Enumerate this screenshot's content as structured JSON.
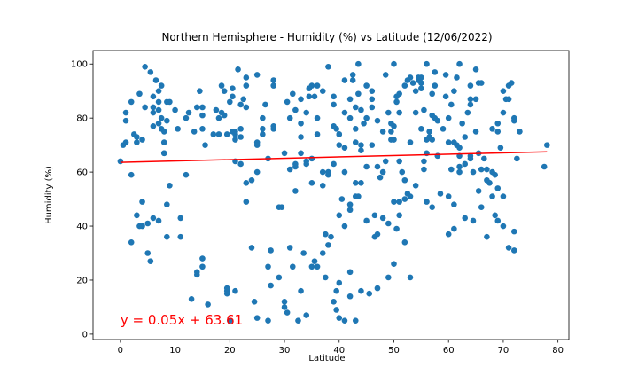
{
  "chart_data": {
    "type": "scatter",
    "title": "Northern Hemisphere - Humidity (%) vs Latitude (12/06/2022)",
    "xlabel": "Latitude",
    "ylabel": "Humidity (%)",
    "xlim": [
      -5,
      82
    ],
    "ylim": [
      -2,
      105
    ],
    "xticks": [
      0,
      10,
      20,
      30,
      40,
      50,
      60,
      70,
      80
    ],
    "yticks": [
      0,
      20,
      40,
      60,
      80,
      100
    ],
    "grid": false,
    "colors": {
      "points": "#1f77b4",
      "regression": "#ff0000",
      "annotation": "#ff0000"
    },
    "regression": {
      "slope": 0.05,
      "intercept": 63.61,
      "x_range": [
        0,
        78
      ],
      "label": "y = 0.05x + 63.61",
      "label_at": [
        0,
        3.5
      ]
    },
    "points": [
      [
        0,
        64
      ],
      [
        0.5,
        70
      ],
      [
        1,
        71
      ],
      [
        1,
        79
      ],
      [
        1,
        82
      ],
      [
        2,
        86
      ],
      [
        2,
        59
      ],
      [
        2,
        34
      ],
      [
        2.5,
        74
      ],
      [
        3,
        71
      ],
      [
        3,
        73
      ],
      [
        3,
        44
      ],
      [
        3.5,
        89
      ],
      [
        3.5,
        40
      ],
      [
        4,
        72
      ],
      [
        4,
        40
      ],
      [
        4,
        49
      ],
      [
        4.5,
        99
      ],
      [
        4.5,
        84
      ],
      [
        5,
        30
      ],
      [
        5,
        41
      ],
      [
        5.5,
        97
      ],
      [
        5.5,
        27
      ],
      [
        6,
        88
      ],
      [
        6,
        84
      ],
      [
        6,
        82
      ],
      [
        6,
        77
      ],
      [
        6,
        43
      ],
      [
        6.5,
        94
      ],
      [
        7,
        90
      ],
      [
        7,
        86
      ],
      [
        7,
        83
      ],
      [
        7,
        78
      ],
      [
        7,
        42
      ],
      [
        7.5,
        92
      ],
      [
        7.5,
        80
      ],
      [
        7.5,
        76
      ],
      [
        8,
        75
      ],
      [
        8,
        71
      ],
      [
        8,
        67
      ],
      [
        8,
        67
      ],
      [
        8.5,
        86
      ],
      [
        8.5,
        79
      ],
      [
        8.5,
        48
      ],
      [
        8.5,
        36
      ],
      [
        9,
        86
      ],
      [
        9,
        55
      ],
      [
        10,
        83
      ],
      [
        10.5,
        76
      ],
      [
        11,
        43
      ],
      [
        11,
        36
      ],
      [
        12,
        80
      ],
      [
        12,
        59
      ],
      [
        12.5,
        82
      ],
      [
        13,
        13
      ],
      [
        13.5,
        75
      ],
      [
        14,
        84
      ],
      [
        14,
        22
      ],
      [
        14,
        23
      ],
      [
        14.5,
        90
      ],
      [
        15,
        28
      ],
      [
        15,
        25
      ],
      [
        15,
        76
      ],
      [
        15,
        84
      ],
      [
        15,
        81
      ],
      [
        15.5,
        70
      ],
      [
        16,
        11
      ],
      [
        17,
        74
      ],
      [
        17.5,
        83
      ],
      [
        18,
        80
      ],
      [
        18,
        74
      ],
      [
        18.5,
        92
      ],
      [
        18.5,
        82
      ],
      [
        19,
        90
      ],
      [
        19,
        81
      ],
      [
        19.5,
        74
      ],
      [
        19.5,
        16
      ],
      [
        19.5,
        15
      ],
      [
        19.5,
        17
      ],
      [
        20,
        86
      ],
      [
        20,
        5
      ],
      [
        20.5,
        91
      ],
      [
        20.5,
        88
      ],
      [
        20.5,
        75
      ],
      [
        21,
        74
      ],
      [
        21,
        72
      ],
      [
        21,
        75
      ],
      [
        21,
        16
      ],
      [
        21,
        64
      ],
      [
        21.5,
        98
      ],
      [
        22,
        85
      ],
      [
        22,
        76
      ],
      [
        22,
        73
      ],
      [
        22,
        63
      ],
      [
        22.5,
        87
      ],
      [
        23,
        95
      ],
      [
        23,
        92
      ],
      [
        23,
        84
      ],
      [
        23,
        56
      ],
      [
        23,
        49
      ],
      [
        24,
        32
      ],
      [
        24,
        57
      ],
      [
        24.5,
        12
      ],
      [
        25,
        96
      ],
      [
        25,
        71
      ],
      [
        25,
        70
      ],
      [
        25,
        60
      ],
      [
        25,
        6
      ],
      [
        26,
        76
      ],
      [
        26,
        74
      ],
      [
        26,
        80
      ],
      [
        26.5,
        85
      ],
      [
        27,
        65
      ],
      [
        27,
        25
      ],
      [
        27,
        5
      ],
      [
        27.5,
        31
      ],
      [
        27.5,
        18
      ],
      [
        28,
        92
      ],
      [
        28,
        77
      ],
      [
        28,
        94
      ],
      [
        28,
        76
      ],
      [
        29,
        21
      ],
      [
        29,
        47
      ],
      [
        29.5,
        47
      ],
      [
        30,
        67
      ],
      [
        30,
        12
      ],
      [
        30,
        10
      ],
      [
        30.5,
        8
      ],
      [
        30.5,
        86
      ],
      [
        31,
        80
      ],
      [
        31,
        61
      ],
      [
        31,
        32
      ],
      [
        31.5,
        89
      ],
      [
        31.5,
        25
      ],
      [
        32,
        83
      ],
      [
        32,
        62
      ],
      [
        32,
        53
      ],
      [
        32,
        63
      ],
      [
        32.5,
        5
      ],
      [
        33,
        67
      ],
      [
        33,
        78
      ],
      [
        33,
        87
      ],
      [
        33,
        73
      ],
      [
        33,
        16
      ],
      [
        33.5,
        30
      ],
      [
        34,
        63
      ],
      [
        34,
        64
      ],
      [
        34,
        7
      ],
      [
        34,
        82
      ],
      [
        34.5,
        91
      ],
      [
        34.5,
        88
      ],
      [
        35,
        92
      ],
      [
        35,
        65
      ],
      [
        35,
        56
      ],
      [
        35,
        25
      ],
      [
        35.5,
        88
      ],
      [
        35.5,
        27
      ],
      [
        36,
        92
      ],
      [
        36,
        80
      ],
      [
        36,
        74
      ],
      [
        36,
        25
      ],
      [
        37,
        90
      ],
      [
        37,
        60
      ],
      [
        37,
        55
      ],
      [
        37,
        30
      ],
      [
        37.5,
        21
      ],
      [
        37.5,
        37
      ],
      [
        38,
        99
      ],
      [
        38,
        33
      ],
      [
        38,
        59
      ],
      [
        38,
        60
      ],
      [
        38.5,
        36
      ],
      [
        39,
        63
      ],
      [
        39,
        77
      ],
      [
        39,
        85
      ],
      [
        39,
        88
      ],
      [
        39,
        12
      ],
      [
        39.5,
        76
      ],
      [
        39.5,
        9
      ],
      [
        39.5,
        16
      ],
      [
        40,
        74
      ],
      [
        40,
        70
      ],
      [
        40,
        44
      ],
      [
        40,
        19
      ],
      [
        40,
        6
      ],
      [
        40,
        74
      ],
      [
        40.5,
        50
      ],
      [
        41,
        94
      ],
      [
        41,
        82
      ],
      [
        41,
        40
      ],
      [
        41,
        69
      ],
      [
        41,
        60
      ],
      [
        41,
        5
      ],
      [
        42,
        87
      ],
      [
        42,
        80
      ],
      [
        42,
        48
      ],
      [
        42,
        46
      ],
      [
        42,
        23
      ],
      [
        42,
        14
      ],
      [
        42.5,
        94
      ],
      [
        42.5,
        96
      ],
      [
        43,
        84
      ],
      [
        43,
        76
      ],
      [
        43,
        71
      ],
      [
        43,
        56
      ],
      [
        43,
        5
      ],
      [
        43,
        51
      ],
      [
        43.5,
        100
      ],
      [
        43.5,
        51
      ],
      [
        43.5,
        89
      ],
      [
        44,
        83
      ],
      [
        44,
        70
      ],
      [
        44,
        68
      ],
      [
        44,
        56
      ],
      [
        44,
        16
      ],
      [
        44.5,
        78
      ],
      [
        45,
        80
      ],
      [
        45,
        92
      ],
      [
        45,
        62
      ],
      [
        45,
        42
      ],
      [
        45.5,
        15
      ],
      [
        46,
        90
      ],
      [
        46,
        87
      ],
      [
        46,
        84
      ],
      [
        46,
        70
      ],
      [
        46.5,
        44
      ],
      [
        46.5,
        36
      ],
      [
        47,
        79
      ],
      [
        47,
        62
      ],
      [
        47,
        37
      ],
      [
        47,
        17
      ],
      [
        47.5,
        58
      ],
      [
        48,
        75
      ],
      [
        48,
        60
      ],
      [
        48,
        43
      ],
      [
        48.5,
        96
      ],
      [
        48.5,
        64
      ],
      [
        49,
        41
      ],
      [
        49,
        21
      ],
      [
        49,
        82
      ],
      [
        49.5,
        78
      ],
      [
        49.5,
        72
      ],
      [
        49.5,
        75
      ],
      [
        50,
        100
      ],
      [
        50,
        77
      ],
      [
        50,
        72
      ],
      [
        50,
        49
      ],
      [
        50,
        26
      ],
      [
        50.5,
        88
      ],
      [
        50.5,
        86
      ],
      [
        50.5,
        39
      ],
      [
        51,
        89
      ],
      [
        51,
        64
      ],
      [
        51,
        82
      ],
      [
        51,
        49
      ],
      [
        51,
        44
      ],
      [
        51.5,
        60
      ],
      [
        52,
        92
      ],
      [
        52,
        57
      ],
      [
        52,
        50
      ],
      [
        52,
        34
      ],
      [
        52.5,
        94
      ],
      [
        52.5,
        52
      ],
      [
        53,
        95
      ],
      [
        53,
        71
      ],
      [
        53,
        51
      ],
      [
        53,
        21
      ],
      [
        53.5,
        93
      ],
      [
        54,
        82
      ],
      [
        54,
        90
      ],
      [
        54,
        55
      ],
      [
        54.5,
        94
      ],
      [
        54.5,
        95
      ],
      [
        55,
        76
      ],
      [
        55,
        95
      ],
      [
        55,
        91
      ],
      [
        55,
        93
      ],
      [
        55.5,
        83
      ],
      [
        55.5,
        61
      ],
      [
        55.5,
        64
      ],
      [
        56,
        100
      ],
      [
        56,
        67
      ],
      [
        56,
        72
      ],
      [
        56,
        49
      ],
      [
        56.5,
        75
      ],
      [
        56.5,
        73
      ],
      [
        57,
        72
      ],
      [
        57,
        89
      ],
      [
        57,
        81
      ],
      [
        57,
        47
      ],
      [
        57.5,
        92
      ],
      [
        57.5,
        80
      ],
      [
        57.5,
        97
      ],
      [
        58,
        66
      ],
      [
        58,
        66
      ],
      [
        58,
        79
      ],
      [
        58.5,
        52
      ],
      [
        59,
        76
      ],
      [
        59.5,
        96
      ],
      [
        59.5,
        88
      ],
      [
        60,
        71
      ],
      [
        60,
        80
      ],
      [
        60,
        51
      ],
      [
        60,
        37
      ],
      [
        60.5,
        85
      ],
      [
        60.5,
        61
      ],
      [
        61,
        90
      ],
      [
        61,
        71
      ],
      [
        61,
        48
      ],
      [
        61,
        39
      ],
      [
        61.5,
        70
      ],
      [
        61.5,
        95
      ],
      [
        62,
        100
      ],
      [
        62,
        66
      ],
      [
        62,
        60
      ],
      [
        62,
        62
      ],
      [
        62,
        69
      ],
      [
        62.5,
        78
      ],
      [
        63,
        73
      ],
      [
        63,
        63
      ],
      [
        63,
        43
      ],
      [
        63.5,
        82
      ],
      [
        64,
        66
      ],
      [
        64,
        65
      ],
      [
        64,
        92
      ],
      [
        64,
        87
      ],
      [
        64,
        85
      ],
      [
        64.5,
        60
      ],
      [
        64.5,
        42
      ],
      [
        65,
        87
      ],
      [
        65,
        75
      ],
      [
        65,
        98
      ],
      [
        65.5,
        93
      ],
      [
        65.5,
        67
      ],
      [
        65.5,
        53
      ],
      [
        66,
        61
      ],
      [
        66,
        47
      ],
      [
        66,
        93
      ],
      [
        66.5,
        65
      ],
      [
        67,
        61
      ],
      [
        67,
        57
      ],
      [
        67,
        36
      ],
      [
        67.5,
        56
      ],
      [
        68,
        76
      ],
      [
        68,
        60
      ],
      [
        68,
        51
      ],
      [
        68.5,
        59
      ],
      [
        68.5,
        44
      ],
      [
        69,
        75
      ],
      [
        69,
        54
      ],
      [
        69,
        42
      ],
      [
        69,
        78
      ],
      [
        69.5,
        69
      ],
      [
        70,
        90
      ],
      [
        70,
        82
      ],
      [
        70,
        51
      ],
      [
        70,
        40
      ],
      [
        70.5,
        87
      ],
      [
        71,
        92
      ],
      [
        71,
        87
      ],
      [
        71,
        32
      ],
      [
        71.5,
        93
      ],
      [
        72,
        80
      ],
      [
        72,
        79
      ],
      [
        72,
        38
      ],
      [
        72,
        31
      ],
      [
        72.5,
        65
      ],
      [
        73,
        75
      ],
      [
        77.5,
        62
      ],
      [
        78,
        70
      ]
    ]
  }
}
